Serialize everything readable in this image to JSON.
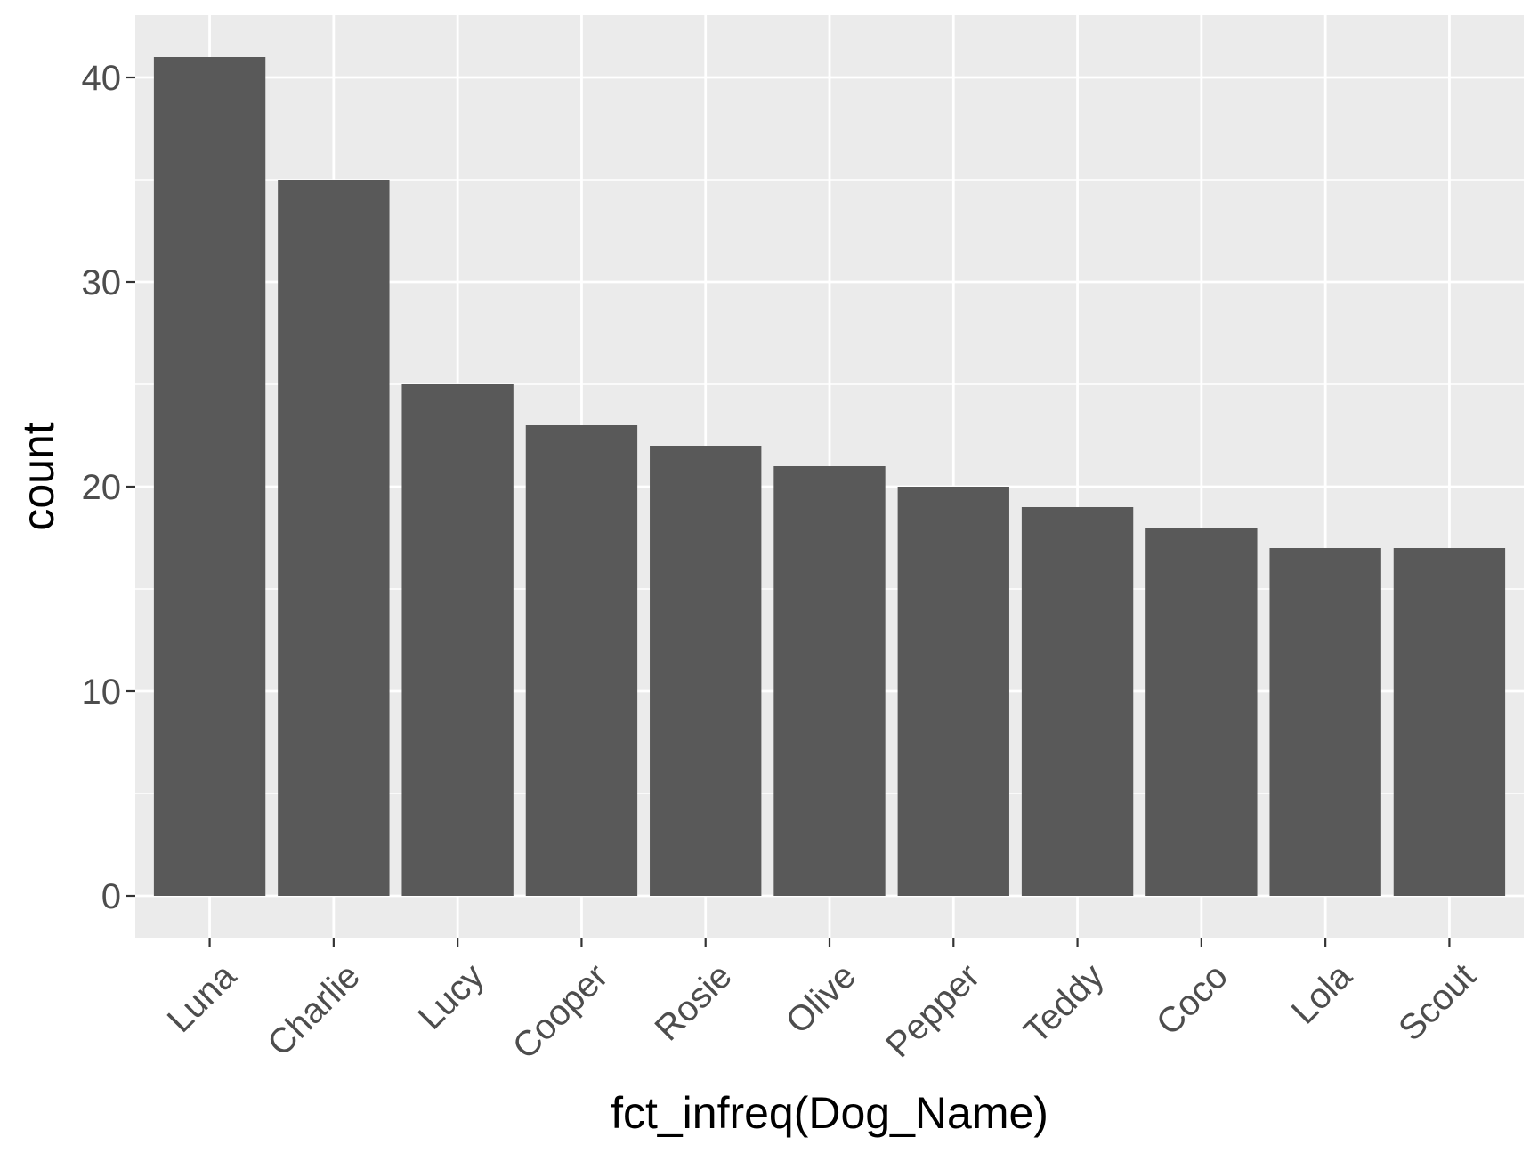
{
  "chart_data": {
    "type": "bar",
    "title": "",
    "xlabel": "fct_infreq(Dog_Name)",
    "ylabel": "count",
    "categories": [
      "Luna",
      "Charlie",
      "Lucy",
      "Cooper",
      "Rosie",
      "Olive",
      "Pepper",
      "Teddy",
      "Coco",
      "Lola",
      "Scout"
    ],
    "values": [
      41,
      35,
      25,
      23,
      22,
      21,
      20,
      19,
      18,
      17,
      17
    ],
    "ylim": [
      0,
      43
    ],
    "yticks": [
      0,
      10,
      20,
      30,
      40
    ],
    "grid": true,
    "legend": "none",
    "colors": {
      "panel_background": "#ebebeb",
      "grid": "#ffffff",
      "bar_fill": "#595959",
      "tick_text": "#4d4d4d",
      "title_text": "#000000"
    }
  }
}
